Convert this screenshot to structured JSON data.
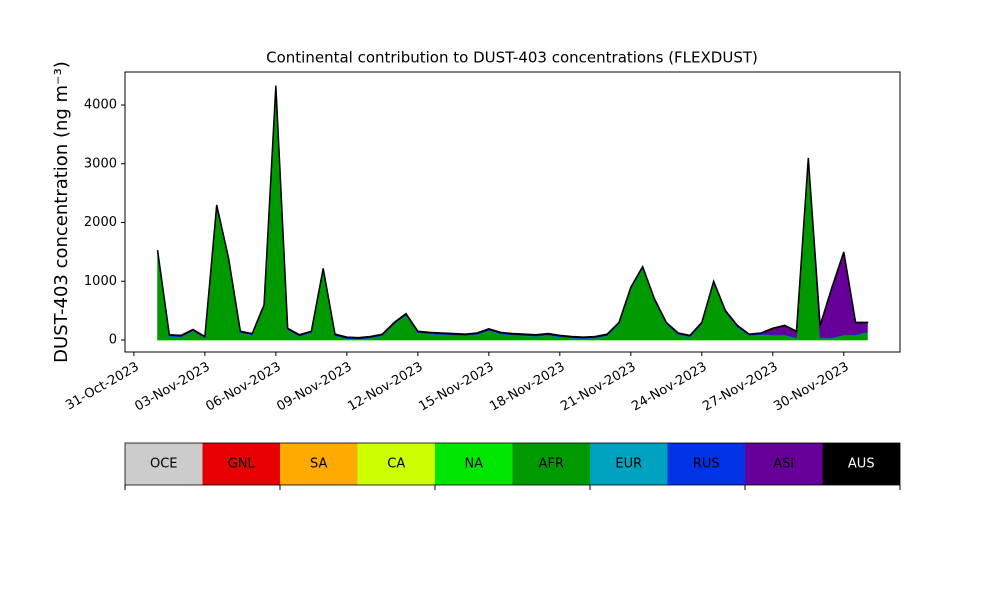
{
  "chart_data": {
    "type": "stacked_area",
    "title": "Continental contribution to DUST-403 concentrations (FLEXDUST)",
    "y_label": "DUST-403 concentration (ng m⁻³)",
    "x": [
      "2023-11-01T00:00",
      "2023-11-01T12:00",
      "2023-11-02T00:00",
      "2023-11-02T12:00",
      "2023-11-03T00:00",
      "2023-11-03T12:00",
      "2023-11-04T00:00",
      "2023-11-04T12:00",
      "2023-11-05T00:00",
      "2023-11-05T12:00",
      "2023-11-06T00:00",
      "2023-11-06T12:00",
      "2023-11-07T00:00",
      "2023-11-07T12:00",
      "2023-11-08T00:00",
      "2023-11-08T12:00",
      "2023-11-09T00:00",
      "2023-11-09T12:00",
      "2023-11-10T00:00",
      "2023-11-10T12:00",
      "2023-11-11T00:00",
      "2023-11-11T12:00",
      "2023-11-12T00:00",
      "2023-11-12T12:00",
      "2023-11-13T00:00",
      "2023-11-13T12:00",
      "2023-11-14T00:00",
      "2023-11-14T12:00",
      "2023-11-15T00:00",
      "2023-11-15T12:00",
      "2023-11-16T00:00",
      "2023-11-16T12:00",
      "2023-11-17T00:00",
      "2023-11-17T12:00",
      "2023-11-18T00:00",
      "2023-11-18T12:00",
      "2023-11-19T00:00",
      "2023-11-19T12:00",
      "2023-11-20T00:00",
      "2023-11-20T12:00",
      "2023-11-21T00:00",
      "2023-11-21T12:00",
      "2023-11-22T00:00",
      "2023-11-22T12:00",
      "2023-11-23T00:00",
      "2023-11-23T12:00",
      "2023-11-24T00:00",
      "2023-11-24T12:00",
      "2023-11-25T00:00",
      "2023-11-25T12:00",
      "2023-11-26T00:00",
      "2023-11-26T12:00",
      "2023-11-27T00:00",
      "2023-11-27T12:00",
      "2023-11-28T00:00",
      "2023-11-28T12:00",
      "2023-11-29T00:00",
      "2023-11-29T12:00",
      "2023-11-30T00:00",
      "2023-11-30T12:00",
      "2023-12-01T00:00"
    ],
    "series": [
      {
        "name": "OCE",
        "color": "#cccccc",
        "values": [
          0,
          0,
          0,
          0,
          0,
          0,
          0,
          0,
          0,
          0,
          0,
          0,
          0,
          0,
          0,
          0,
          0,
          0,
          0,
          0,
          0,
          0,
          0,
          0,
          0,
          0,
          0,
          0,
          0,
          0,
          0,
          0,
          0,
          0,
          0,
          0,
          0,
          0,
          0,
          0,
          0,
          0,
          0,
          0,
          0,
          0,
          0,
          0,
          0,
          0,
          0,
          0,
          0,
          0,
          0,
          0,
          0,
          0,
          0,
          0,
          0
        ]
      },
      {
        "name": "GNL",
        "color": "#e60000",
        "values": [
          0,
          0,
          0,
          0,
          0,
          0,
          0,
          0,
          0,
          0,
          0,
          0,
          0,
          0,
          0,
          0,
          0,
          0,
          0,
          0,
          0,
          0,
          0,
          0,
          0,
          0,
          0,
          0,
          0,
          0,
          0,
          0,
          0,
          0,
          0,
          0,
          0,
          0,
          0,
          0,
          0,
          0,
          0,
          0,
          0,
          0,
          0,
          0,
          0,
          0,
          0,
          0,
          0,
          0,
          0,
          0,
          0,
          0,
          0,
          0,
          0
        ]
      },
      {
        "name": "SA",
        "color": "#ffaa00",
        "values": [
          0,
          0,
          0,
          0,
          0,
          0,
          0,
          0,
          0,
          0,
          0,
          0,
          0,
          0,
          0,
          0,
          0,
          0,
          0,
          0,
          0,
          0,
          0,
          0,
          0,
          0,
          0,
          0,
          0,
          0,
          0,
          0,
          0,
          0,
          0,
          0,
          0,
          0,
          0,
          0,
          0,
          0,
          0,
          0,
          0,
          0,
          0,
          0,
          0,
          0,
          0,
          0,
          0,
          0,
          0,
          0,
          0,
          0,
          0,
          0,
          0
        ]
      },
      {
        "name": "CA",
        "color": "#ccff00",
        "values": [
          0,
          0,
          0,
          0,
          0,
          0,
          0,
          0,
          0,
          0,
          0,
          0,
          0,
          0,
          0,
          0,
          0,
          0,
          0,
          0,
          0,
          0,
          0,
          0,
          0,
          0,
          0,
          0,
          0,
          0,
          0,
          0,
          0,
          0,
          0,
          0,
          0,
          0,
          0,
          0,
          0,
          0,
          0,
          0,
          0,
          0,
          0,
          0,
          0,
          0,
          0,
          0,
          0,
          0,
          0,
          0,
          0,
          0,
          0,
          0,
          0
        ]
      },
      {
        "name": "NA",
        "color": "#00e600",
        "values": [
          5,
          5,
          5,
          5,
          5,
          5,
          5,
          5,
          5,
          5,
          5,
          5,
          5,
          5,
          5,
          5,
          5,
          5,
          5,
          5,
          5,
          5,
          5,
          5,
          5,
          5,
          5,
          5,
          5,
          5,
          5,
          5,
          5,
          5,
          5,
          5,
          5,
          5,
          5,
          5,
          5,
          5,
          5,
          5,
          5,
          5,
          5,
          5,
          5,
          5,
          5,
          5,
          5,
          5,
          5,
          5,
          5,
          5,
          5,
          5,
          5
        ]
      },
      {
        "name": "AFR",
        "color": "#009900",
        "values": [
          1495,
          55,
          45,
          145,
          25,
          2265,
          1365,
          115,
          75,
          565,
          4295,
          165,
          55,
          115,
          1185,
          65,
          15,
          5,
          25,
          65,
          265,
          415,
          115,
          95,
          85,
          75,
          65,
          85,
          155,
          95,
          75,
          65,
          55,
          75,
          45,
          25,
          15,
          25,
          65,
          265,
          865,
          1215,
          665,
          265,
          85,
          45,
          265,
          965,
          465,
          215,
          65,
          85,
          75,
          75,
          25,
          3065,
          25,
          25,
          75,
          75,
          125
        ]
      },
      {
        "name": "EUR",
        "color": "#00a3bf",
        "values": [
          5,
          5,
          5,
          5,
          5,
          5,
          5,
          5,
          5,
          5,
          5,
          5,
          5,
          5,
          5,
          5,
          5,
          5,
          5,
          5,
          5,
          5,
          5,
          5,
          5,
          5,
          5,
          5,
          5,
          5,
          5,
          5,
          5,
          5,
          5,
          5,
          5,
          5,
          5,
          5,
          5,
          5,
          5,
          5,
          5,
          5,
          5,
          5,
          5,
          5,
          5,
          5,
          5,
          5,
          5,
          5,
          5,
          5,
          5,
          5,
          5
        ]
      },
      {
        "name": "RUS",
        "color": "#0033e6",
        "values": [
          10,
          10,
          10,
          10,
          10,
          10,
          10,
          10,
          10,
          10,
          10,
          10,
          10,
          10,
          10,
          10,
          10,
          10,
          10,
          10,
          10,
          10,
          10,
          10,
          10,
          10,
          10,
          10,
          10,
          10,
          10,
          10,
          10,
          10,
          10,
          10,
          10,
          10,
          10,
          10,
          10,
          10,
          10,
          10,
          10,
          10,
          10,
          10,
          10,
          10,
          10,
          10,
          10,
          10,
          10,
          10,
          10,
          10,
          10,
          10,
          10
        ]
      },
      {
        "name": "ASI",
        "color": "#660099",
        "values": [
          10,
          10,
          10,
          10,
          10,
          10,
          10,
          10,
          10,
          10,
          10,
          10,
          10,
          10,
          10,
          10,
          10,
          10,
          10,
          10,
          10,
          10,
          10,
          10,
          10,
          10,
          10,
          10,
          10,
          10,
          10,
          10,
          10,
          10,
          10,
          10,
          10,
          10,
          10,
          10,
          10,
          10,
          10,
          10,
          10,
          10,
          10,
          10,
          10,
          10,
          10,
          10,
          100,
          150,
          100,
          10,
          200,
          850,
          1400,
          200,
          150
        ]
      },
      {
        "name": "AUS",
        "color": "#000000",
        "values": [
          5,
          5,
          5,
          5,
          5,
          5,
          5,
          5,
          5,
          5,
          5,
          5,
          5,
          5,
          5,
          5,
          5,
          5,
          5,
          5,
          5,
          5,
          5,
          5,
          5,
          5,
          5,
          5,
          5,
          5,
          5,
          5,
          5,
          5,
          5,
          5,
          5,
          5,
          5,
          5,
          5,
          5,
          5,
          5,
          5,
          5,
          5,
          5,
          5,
          5,
          5,
          5,
          5,
          5,
          5,
          5,
          5,
          5,
          5,
          5,
          5
        ]
      }
    ],
    "xlim": [
      "2023-10-30T15:00",
      "2023-12-02T09:00"
    ],
    "xticks": [
      {
        "value": "2023-10-31",
        "label": "31-Oct-2023"
      },
      {
        "value": "2023-11-03",
        "label": "03-Nov-2023"
      },
      {
        "value": "2023-11-06",
        "label": "06-Nov-2023"
      },
      {
        "value": "2023-11-09",
        "label": "09-Nov-2023"
      },
      {
        "value": "2023-11-12",
        "label": "12-Nov-2023"
      },
      {
        "value": "2023-11-15",
        "label": "15-Nov-2023"
      },
      {
        "value": "2023-11-18",
        "label": "18-Nov-2023"
      },
      {
        "value": "2023-11-21",
        "label": "21-Nov-2023"
      },
      {
        "value": "2023-11-24",
        "label": "24-Nov-2023"
      },
      {
        "value": "2023-11-27",
        "label": "27-Nov-2023"
      },
      {
        "value": "2023-11-30",
        "label": "30-Nov-2023"
      }
    ],
    "ylim": [
      -204,
      4562
    ],
    "yticks": [
      0,
      1000,
      2000,
      3000,
      4000
    ],
    "grid": false
  }
}
